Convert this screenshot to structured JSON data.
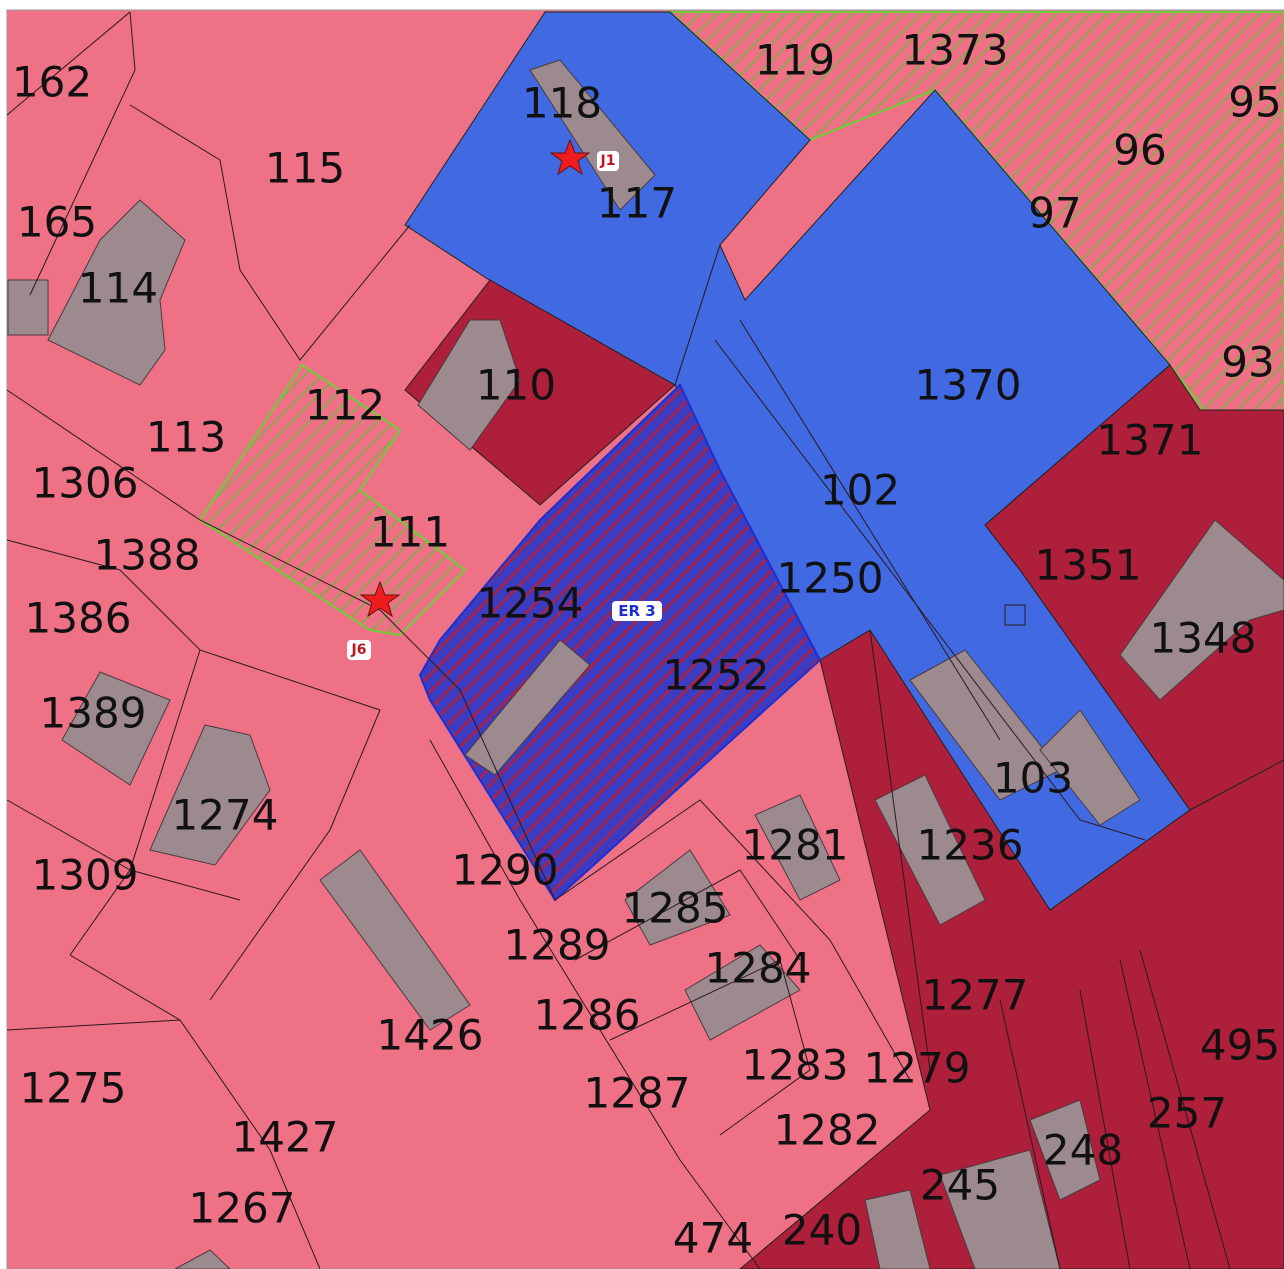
{
  "parcel_labels": [
    "162",
    "115",
    "118",
    "117",
    "119",
    "1373",
    "95",
    "96",
    "97",
    "165",
    "114",
    "93",
    "110",
    "1370",
    "112",
    "113",
    "1371",
    "1306",
    "102",
    "111",
    "1388",
    "1351",
    "1250",
    "1254",
    "1386",
    "1348",
    "1252",
    "1389",
    "103",
    "1274",
    "1281",
    "1236",
    "1309",
    "1290",
    "1285",
    "1289",
    "1284",
    "1277",
    "1286",
    "1426",
    "495",
    "1283",
    "1279",
    "1275",
    "1287",
    "257",
    "1427",
    "1282",
    "248",
    "245",
    "1267",
    "474",
    "240"
  ],
  "markers": [
    "J1",
    "J6"
  ],
  "zone_label": "ER 3"
}
